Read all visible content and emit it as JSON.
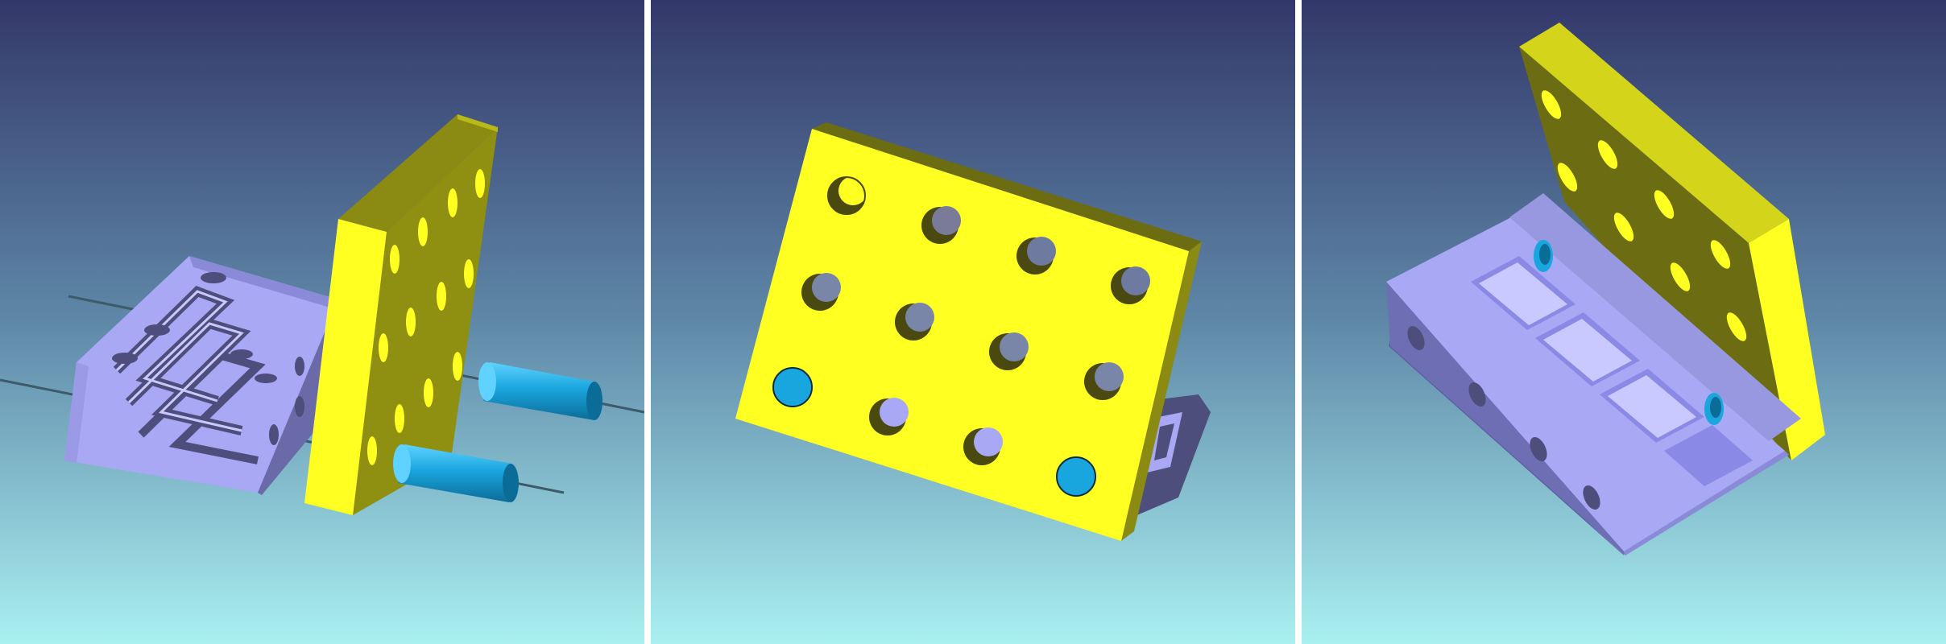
{
  "colors": {
    "bg_top": "#33386a",
    "bg_mid": "#5f88a8",
    "bg_bottom": "#a9f0f1",
    "separator": "#ffffff",
    "plate_face": "#ffff22",
    "plate_shade": "#8b8b14",
    "plate_dark": "#6c6c12",
    "block_light": "#a8a8f5",
    "block_mid": "#7878bc",
    "block_dark": "#4e4e7c",
    "cylinder": "#19a6de",
    "cylinder_dark": "#0c6c98",
    "rod": "#3c5a6a"
  },
  "views": [
    {
      "name": "exploded-view",
      "parts": [
        "block",
        "plate",
        "cylinder",
        "cylinder",
        "rod",
        "rod"
      ]
    },
    {
      "name": "plate-front-view",
      "parts": [
        "plate",
        "block"
      ]
    },
    {
      "name": "open-hinge-view",
      "parts": [
        "plate",
        "block"
      ]
    }
  ]
}
